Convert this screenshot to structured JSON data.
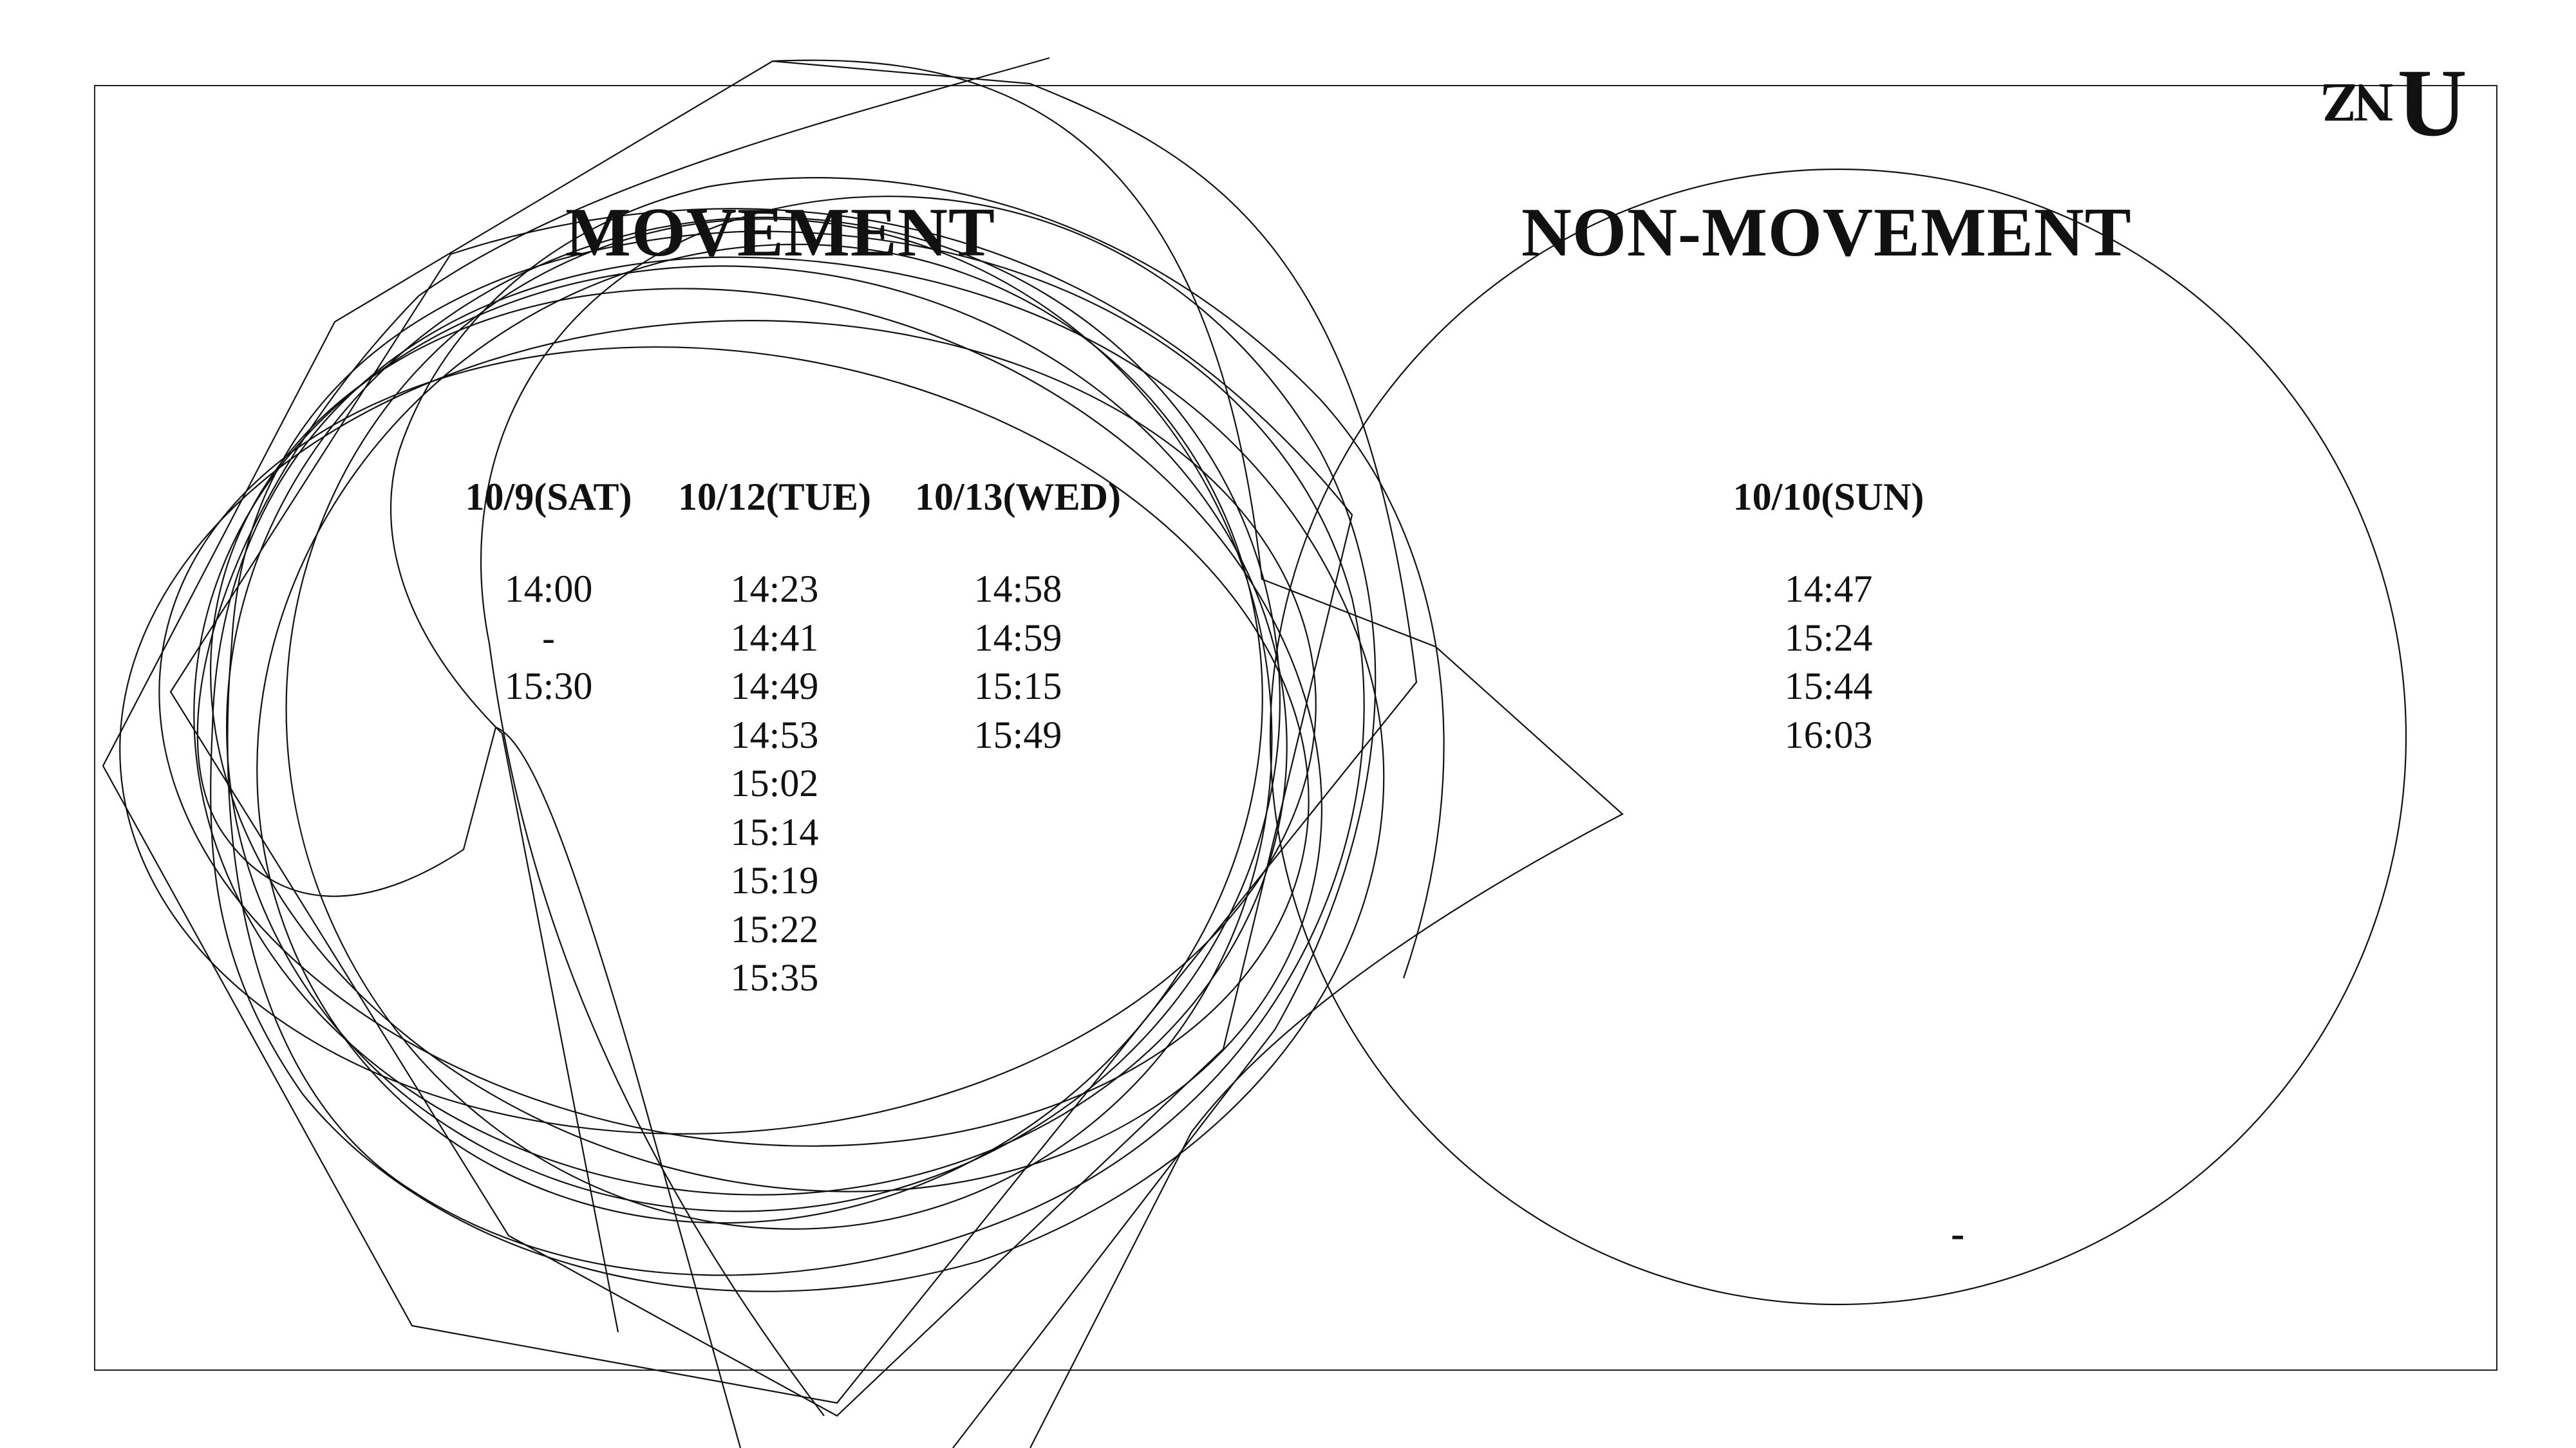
{
  "logo": {
    "mark": "U",
    "rotated_mark": "NZ"
  },
  "sections": [
    {
      "title": "MOVEMENT",
      "columns": [
        {
          "date": "10/9(SAT)",
          "times": [
            "14:00",
            "-",
            "15:30"
          ]
        },
        {
          "date": "10/12(TUE)",
          "times": [
            "14:23",
            "14:41",
            "14:49",
            "14:53",
            "15:02",
            "15:14",
            "15:19",
            "15:22",
            "15:35"
          ]
        },
        {
          "date": "10/13(WED)",
          "times": [
            "14:58",
            "14:59",
            "15:15",
            "15:49"
          ]
        }
      ]
    },
    {
      "title": "NON-MOVEMENT",
      "columns": [
        {
          "date": "10/10(SUN)",
          "times": [
            "14:47",
            "15:24",
            "15:44",
            "16:03"
          ]
        }
      ],
      "footer_mark": "-"
    }
  ]
}
